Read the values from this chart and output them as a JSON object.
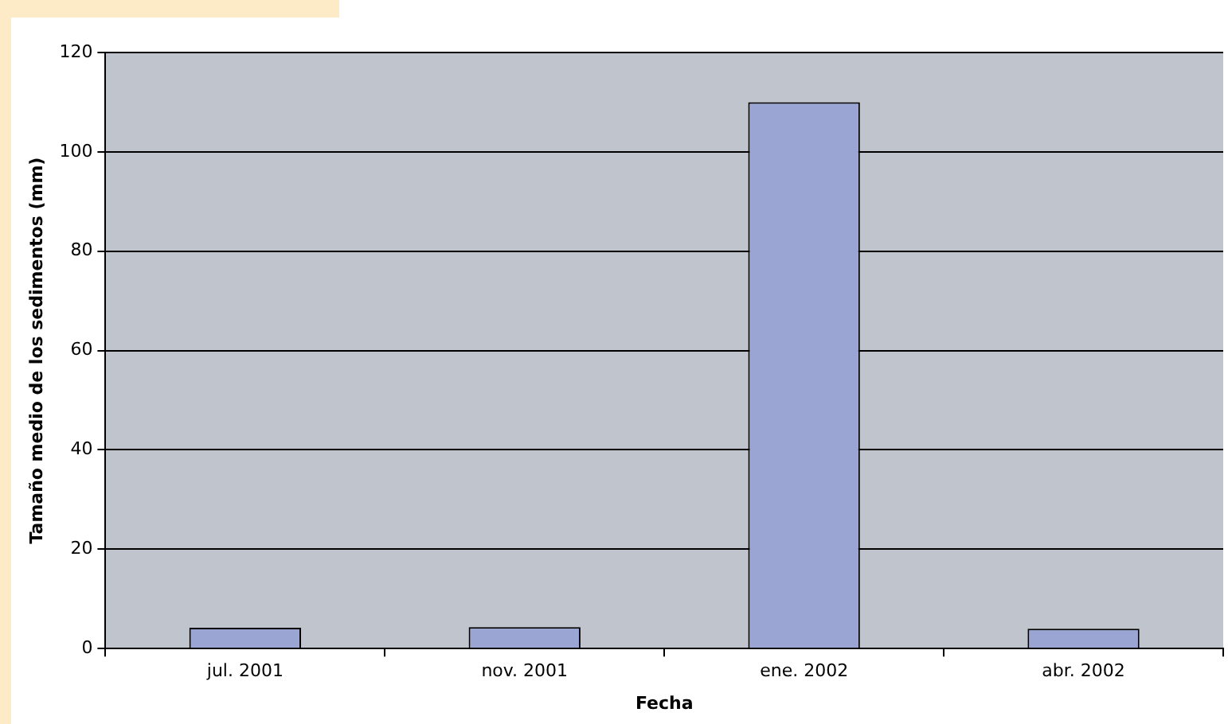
{
  "chart_data": {
    "type": "bar",
    "xlabel": "Fecha",
    "ylabel": "Tamaño medio de los sedimentos (mm)",
    "categories": [
      "jul. 2001",
      "nov. 2001",
      "ene. 2002",
      "abr. 2002"
    ],
    "values": [
      4.2,
      4.3,
      110,
      4
    ],
    "color": "#9aa5d4",
    "ylim": [
      0,
      120
    ],
    "yticks": [
      0,
      20,
      40,
      60,
      80,
      100,
      120
    ],
    "grid": "y"
  }
}
